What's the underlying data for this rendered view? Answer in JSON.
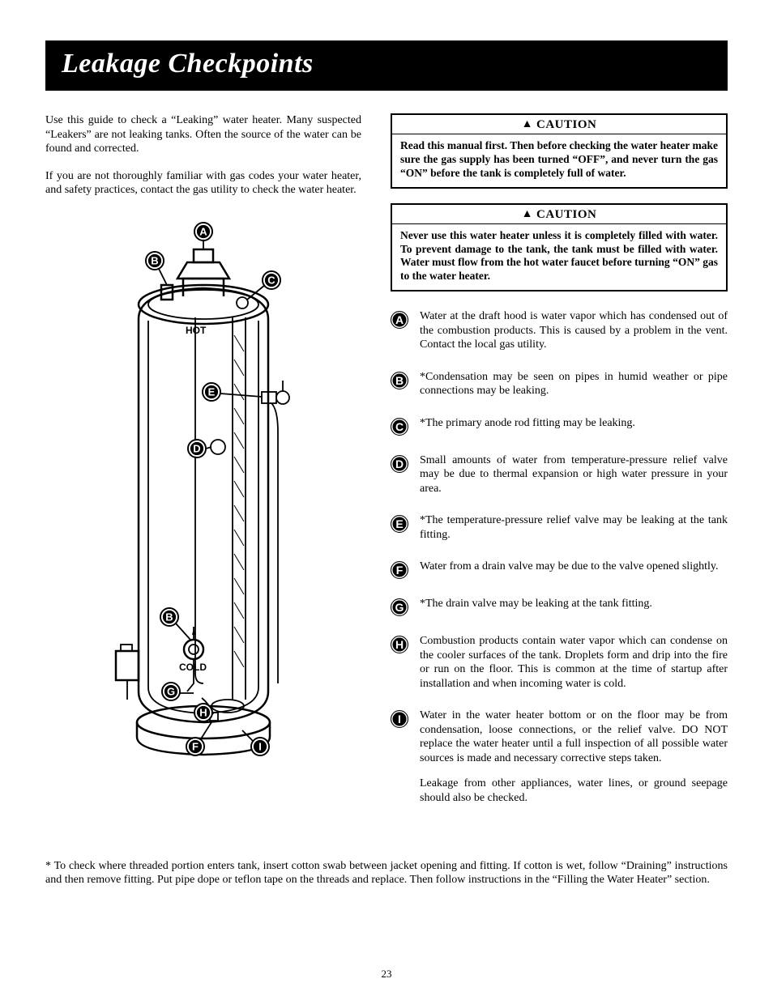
{
  "page": {
    "title": "Leakage Checkpoints",
    "number": "23"
  },
  "intro": {
    "p1": "Use this guide to check a “Leaking” water heater. Many suspected “Leakers” are not leaking tanks. Often the source of the water can be found and corrected.",
    "p2": "If you are not thoroughly familiar with gas codes your water heater, and safety practices, contact the gas utility to check the water heater."
  },
  "diagram": {
    "hot_label": "HOT",
    "cold_label": "COLD",
    "badges": {
      "A": "A",
      "B": "B",
      "C": "C",
      "D": "D",
      "E": "E",
      "F": "F",
      "G": "G",
      "H": "H",
      "I": "I"
    }
  },
  "caution": {
    "label": "CAUTION",
    "box1": "Read this manual first. Then before checking the water heater make sure the gas supply has been turned “OFF”, and never turn the gas “ON” before the tank is completely full of water.",
    "box2": "Never use this water heater unless it is completely filled with water. To prevent damage to the tank, the tank must be filled with water. Water must flow from the hot water faucet before turning “ON” gas to the water heater."
  },
  "checkpoints": [
    {
      "id": "A",
      "text": "Water at the draft hood is water vapor which has condensed out of the combustion products. This is caused by a problem in the vent. Contact the local gas utility."
    },
    {
      "id": "B",
      "text": "*Condensation may be seen on pipes in humid weather or pipe connections may be leaking."
    },
    {
      "id": "C",
      "text": "*The primary anode rod fitting may be leaking."
    },
    {
      "id": "D",
      "text": "Small amounts of water from temperature-pressure relief valve may be due to thermal expansion or high water pressure in your area."
    },
    {
      "id": "E",
      "text": "*The temperature-pressure relief valve may be leaking at the tank fitting."
    },
    {
      "id": "F",
      "text": "Water from a drain valve may be due to the valve opened slightly."
    },
    {
      "id": "G",
      "text": "*The drain valve may be leaking at the tank fitting."
    },
    {
      "id": "H",
      "text": "Combustion products contain water vapor which can condense on the cooler surfaces of the tank. Droplets form and drip into the fire or run on the floor. This is common at the time of startup after installation and when incoming water is cold."
    },
    {
      "id": "I",
      "text": "Water in the water heater bottom or on the floor may be from condensation, loose connections, or the relief valve. DO NOT replace the water heater until a full inspection of all possible water sources is made and necessary corrective steps taken.",
      "extra": "Leakage from other appliances, water lines, or ground seepage should also be checked."
    }
  ],
  "footnote": "* To check where threaded portion enters tank, insert cotton swab between jacket opening and fitting. If cotton is wet, follow “Draining” instructions and then remove fitting. Put pipe dope or teflon tape on the threads and replace. Then follow instructions in the “Filling the Water Heater” section."
}
